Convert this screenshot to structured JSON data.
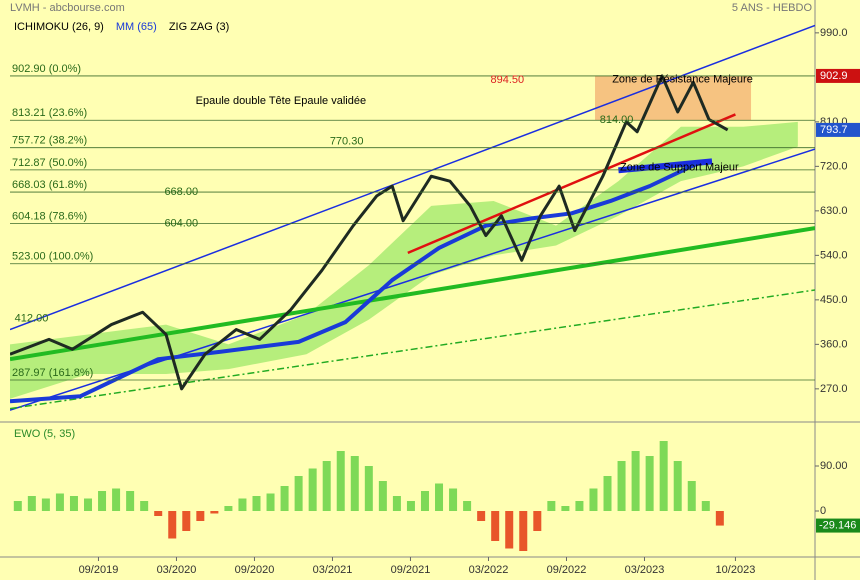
{
  "chart_data": [
    {
      "type": "line",
      "title": "LVMH - abcbourse.com",
      "subtitle": "5 ANS - HEBDO",
      "xlim": [
        2019.1,
        2024.26
      ],
      "ylim": [
        207,
        1016
      ],
      "yticks": [
        {
          "value": 990,
          "label": "990.0"
        },
        {
          "value": 810,
          "label": "810.0"
        },
        {
          "value": 720,
          "label": "720.0"
        },
        {
          "value": 630,
          "label": "630.0"
        },
        {
          "value": 540,
          "label": "540.0"
        },
        {
          "value": 450,
          "label": "450.0"
        },
        {
          "value": 360,
          "label": "360.0"
        },
        {
          "value": 270,
          "label": "270.0"
        }
      ],
      "cloud": {
        "name": "ICHIMOKU (26, 9)",
        "color": "#9ee86a",
        "x": [
          2019.1,
          2019.6,
          2020.1,
          2020.5,
          2021.0,
          2021.4,
          2021.8,
          2022.2,
          2022.6,
          2023.0,
          2023.4,
          2023.8,
          2024.15
        ],
        "upper": [
          360,
          380,
          400,
          360,
          420,
          520,
          640,
          650,
          600,
          690,
          800,
          800,
          810
        ],
        "lower": [
          250,
          300,
          300,
          310,
          340,
          410,
          500,
          540,
          560,
          620,
          690,
          720,
          760
        ]
      },
      "series": [
        {
          "name": "MM (65)",
          "color": "#1a3ad8",
          "x": [
            2019.1,
            2019.55,
            2020.05,
            2020.45,
            2020.95,
            2021.25,
            2021.55,
            2021.85,
            2022.15,
            2022.45,
            2022.7,
            2022.95,
            2023.2,
            2023.5
          ],
          "values": [
            245,
            255,
            330,
            345,
            365,
            405,
            490,
            555,
            600,
            615,
            625,
            650,
            680,
            725
          ]
        },
        {
          "name": "ZIG ZAG (3)",
          "color": "#1e2a22",
          "x": [
            2019.1,
            2019.35,
            2019.5,
            2019.75,
            2019.95,
            2020.1,
            2020.2,
            2020.35,
            2020.55,
            2020.7,
            2020.9,
            2021.1,
            2021.3,
            2021.45,
            2021.55,
            2021.62,
            2021.8,
            2021.92,
            2022.05,
            2022.15,
            2022.25,
            2022.38,
            2022.5,
            2022.62,
            2022.72,
            2022.9,
            2023.05,
            2023.12,
            2023.28,
            2023.38,
            2023.48,
            2023.58,
            2023.7
          ],
          "values": [
            340,
            370,
            350,
            400,
            425,
            380,
            270,
            340,
            390,
            370,
            430,
            510,
            600,
            660,
            680,
            610,
            700,
            690,
            640,
            580,
            620,
            530,
            620,
            680,
            590,
            700,
            810,
            790,
            902.9,
            830,
            890,
            815,
            793.7
          ]
        }
      ],
      "fib_levels": [
        {
          "value": 902.9,
          "label": "902.90 (0.0%)"
        },
        {
          "value": 813.21,
          "label": "813.21 (23.6%)"
        },
        {
          "value": 757.72,
          "label": "757.72 (38.2%)"
        },
        {
          "value": 712.87,
          "label": "712.87 (50.0%)"
        },
        {
          "value": 668.03,
          "label": "668.03 (61.8%)"
        },
        {
          "value": 604.18,
          "label": "604.18 (78.6%)"
        },
        {
          "value": 523,
          "label": "523.00 (100.0%)"
        },
        {
          "value": 287.97,
          "label": "287.97 (161.8%)"
        }
      ],
      "zones": [
        {
          "x": [
            2022.85,
            2023.85
          ],
          "y": [
            813.21,
            902.9
          ],
          "color": "#f5b878"
        }
      ],
      "lines": [
        {
          "x": [
            2019.1,
            2024.26
          ],
          "y": [
            390,
            1005
          ],
          "color": "#1a2ee0",
          "width": 1.5
        },
        {
          "x": [
            2019.1,
            2024.26
          ],
          "y": [
            227,
            755
          ],
          "color": "#1a2ee0",
          "width": 1.5
        },
        {
          "x": [
            2019.1,
            2024.26
          ],
          "y": [
            330,
            595
          ],
          "color": "#22bb22",
          "width": 4
        },
        {
          "x": [
            2019.1,
            2024.26
          ],
          "y": [
            230,
            470
          ],
          "color": "#22aa22",
          "width": 1.5,
          "dash": "7 3 2 3"
        },
        {
          "x": [
            2021.65,
            2023.75
          ],
          "y": [
            545,
            825
          ],
          "color": "#e01010",
          "width": 2.5
        },
        {
          "x": [
            2023.0,
            2023.6
          ],
          "y": [
            712,
            730
          ],
          "color": "#1a2ee0",
          "width": 6
        }
      ],
      "annotations": [
        {
          "text": "894.50",
          "x": 2022.18,
          "y": 894.5,
          "color": "#dd2222",
          "size": 11
        },
        {
          "text": "814.00",
          "x": 2022.88,
          "y": 814,
          "color": "#2a6a1a",
          "size": 11
        },
        {
          "text": "770.30",
          "x": 2021.15,
          "y": 770.3,
          "color": "#2a6a1a",
          "size": 11
        },
        {
          "text": "668.00",
          "x": 2020.09,
          "y": 668,
          "color": "#2a6a1a",
          "size": 11
        },
        {
          "text": "604.00",
          "x": 2020.09,
          "y": 604,
          "color": "#2a6a1a",
          "size": 11
        },
        {
          "text": "412.00",
          "x": 2019.13,
          "y": 412,
          "color": "#2a6a1a",
          "size": 11
        },
        {
          "text": "Epaule double Tête Epaule validée",
          "x": 2020.29,
          "y": 852,
          "color": "#000000",
          "size": 18
        },
        {
          "text": "Zone de Résistance Majeure",
          "x": 2022.96,
          "y": 895,
          "color": "#000000",
          "size": 15
        },
        {
          "text": "Zone de Support Majeur",
          "x": 2023.01,
          "y": 717,
          "color": "#000000",
          "size": 15
        }
      ],
      "markers": [
        {
          "value": 902.9,
          "color": "#cc1111"
        },
        {
          "value": 793.7,
          "color": "#2255cc"
        }
      ]
    },
    {
      "type": "bar",
      "title": "EWO (5, 35)",
      "xlim": [
        2019.1,
        2024.26
      ],
      "ylim": [
        -88,
        172
      ],
      "yticks": [
        {
          "value": 90,
          "label": "90.00"
        },
        0
      ],
      "xticks": [
        {
          "value": 2019.667,
          "label": "09/2019"
        },
        {
          "value": 2020.167,
          "label": "03/2020"
        },
        {
          "value": 2020.667,
          "label": "09/2020"
        },
        {
          "value": 2021.167,
          "label": "03/2021"
        },
        {
          "value": 2021.667,
          "label": "09/2021"
        },
        {
          "value": 2022.167,
          "label": "03/2022"
        },
        {
          "value": 2022.667,
          "label": "09/2022"
        },
        {
          "value": 2023.167,
          "label": "03/2023"
        },
        {
          "value": 2023.75,
          "label": "10/2023"
        }
      ],
      "positive_color": "#7ed957",
      "negative_color": "#e8562a",
      "x": [
        2019.15,
        2019.24,
        2019.33,
        2019.42,
        2019.51,
        2019.6,
        2019.69,
        2019.78,
        2019.87,
        2019.96,
        2020.05,
        2020.14,
        2020.23,
        2020.32,
        2020.41,
        2020.5,
        2020.59,
        2020.68,
        2020.77,
        2020.86,
        2020.95,
        2021.04,
        2021.13,
        2021.22,
        2021.31,
        2021.4,
        2021.49,
        2021.58,
        2021.67,
        2021.76,
        2021.85,
        2021.94,
        2022.03,
        2022.12,
        2022.21,
        2022.3,
        2022.39,
        2022.48,
        2022.57,
        2022.66,
        2022.75,
        2022.84,
        2022.93,
        2023.02,
        2023.11,
        2023.2,
        2023.29,
        2023.38,
        2023.47,
        2023.56,
        2023.65
      ],
      "values": [
        20,
        30,
        25,
        35,
        30,
        25,
        40,
        45,
        40,
        20,
        -10,
        -55,
        -40,
        -20,
        -5,
        10,
        25,
        30,
        35,
        50,
        70,
        85,
        100,
        120,
        110,
        90,
        60,
        30,
        20,
        40,
        55,
        45,
        20,
        -20,
        -60,
        -75,
        -80,
        -40,
        20,
        10,
        20,
        45,
        70,
        100,
        120,
        110,
        140,
        100,
        60,
        20,
        -29.146
      ]
    }
  ]
}
